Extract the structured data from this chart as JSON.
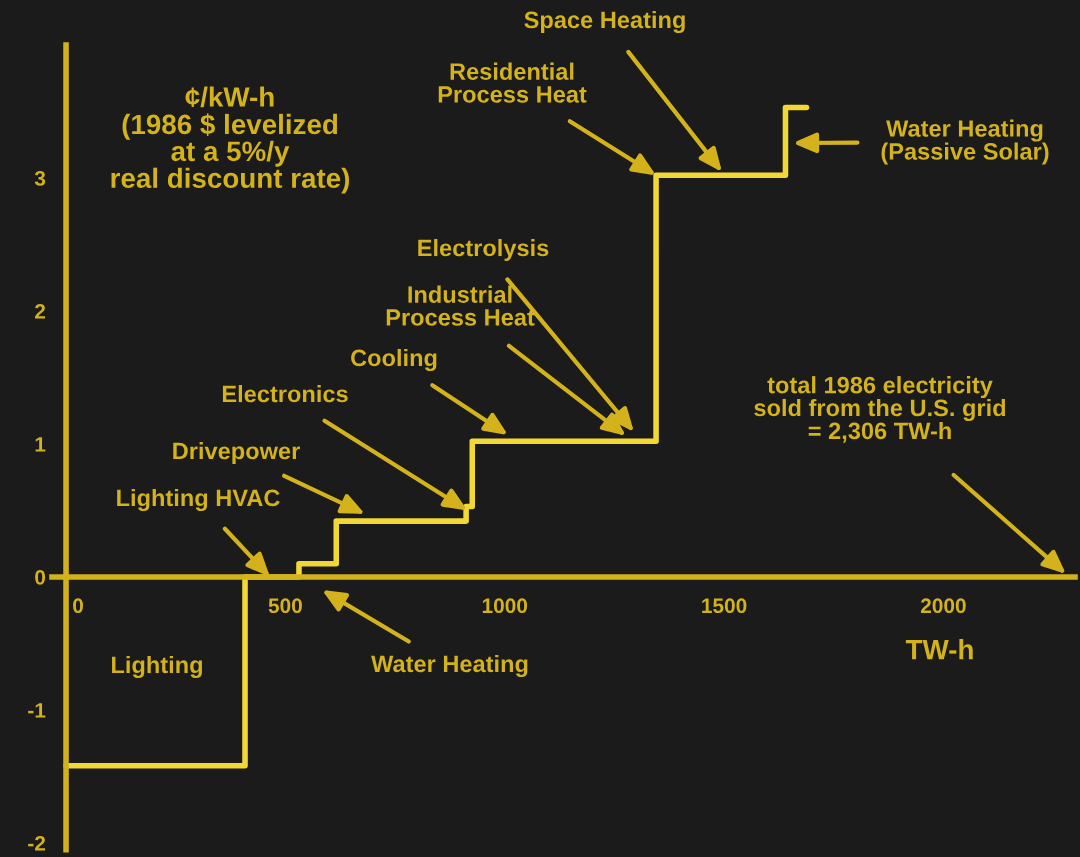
{
  "chart_data": {
    "type": "step",
    "ylabel": "¢/kW-h\n(1986 $ levelized\nat a 5%/y\nreal discount rate)",
    "xlabel": "TW-h",
    "x": [
      0,
      408,
      531,
      616,
      912,
      926,
      1345,
      1640,
      1688
    ],
    "series": [
      {
        "color": "#f2d835",
        "values": [
          -1.42,
          0,
          0.1,
          0.42,
          0.53,
          1.02,
          3.02,
          3.53,
          3.53
        ]
      }
    ],
    "xlim": [
      -32,
      2300
    ],
    "ylim": [
      -2.05,
      4.0
    ],
    "xticks": [
      0,
      500,
      1000,
      1500,
      2000
    ],
    "yticks": [
      -2,
      -1,
      0,
      1,
      2,
      3
    ],
    "grid": false,
    "legend": false,
    "marker": "none",
    "line_style": "solid",
    "annotations": [
      "Lighting",
      {
        "text": "Lighting HVAC",
        "x": 465,
        "y": 0
      },
      "Water Heating",
      "Drivepower",
      {
        "text": "Electronics",
        "x": 915,
        "y": 0.5
      },
      "Cooling",
      "Industrial\nProcess Heat",
      "Electrolysis",
      {
        "text": "Residential\nProcess Heat",
        "x": 1345,
        "y": 3.02
      },
      "Space Heating",
      "Water Heating\n(Passive Solar)",
      "total 1986 electricity\nsold from the U.S. grid\n= 2,306 TW-h"
    ]
  }
}
